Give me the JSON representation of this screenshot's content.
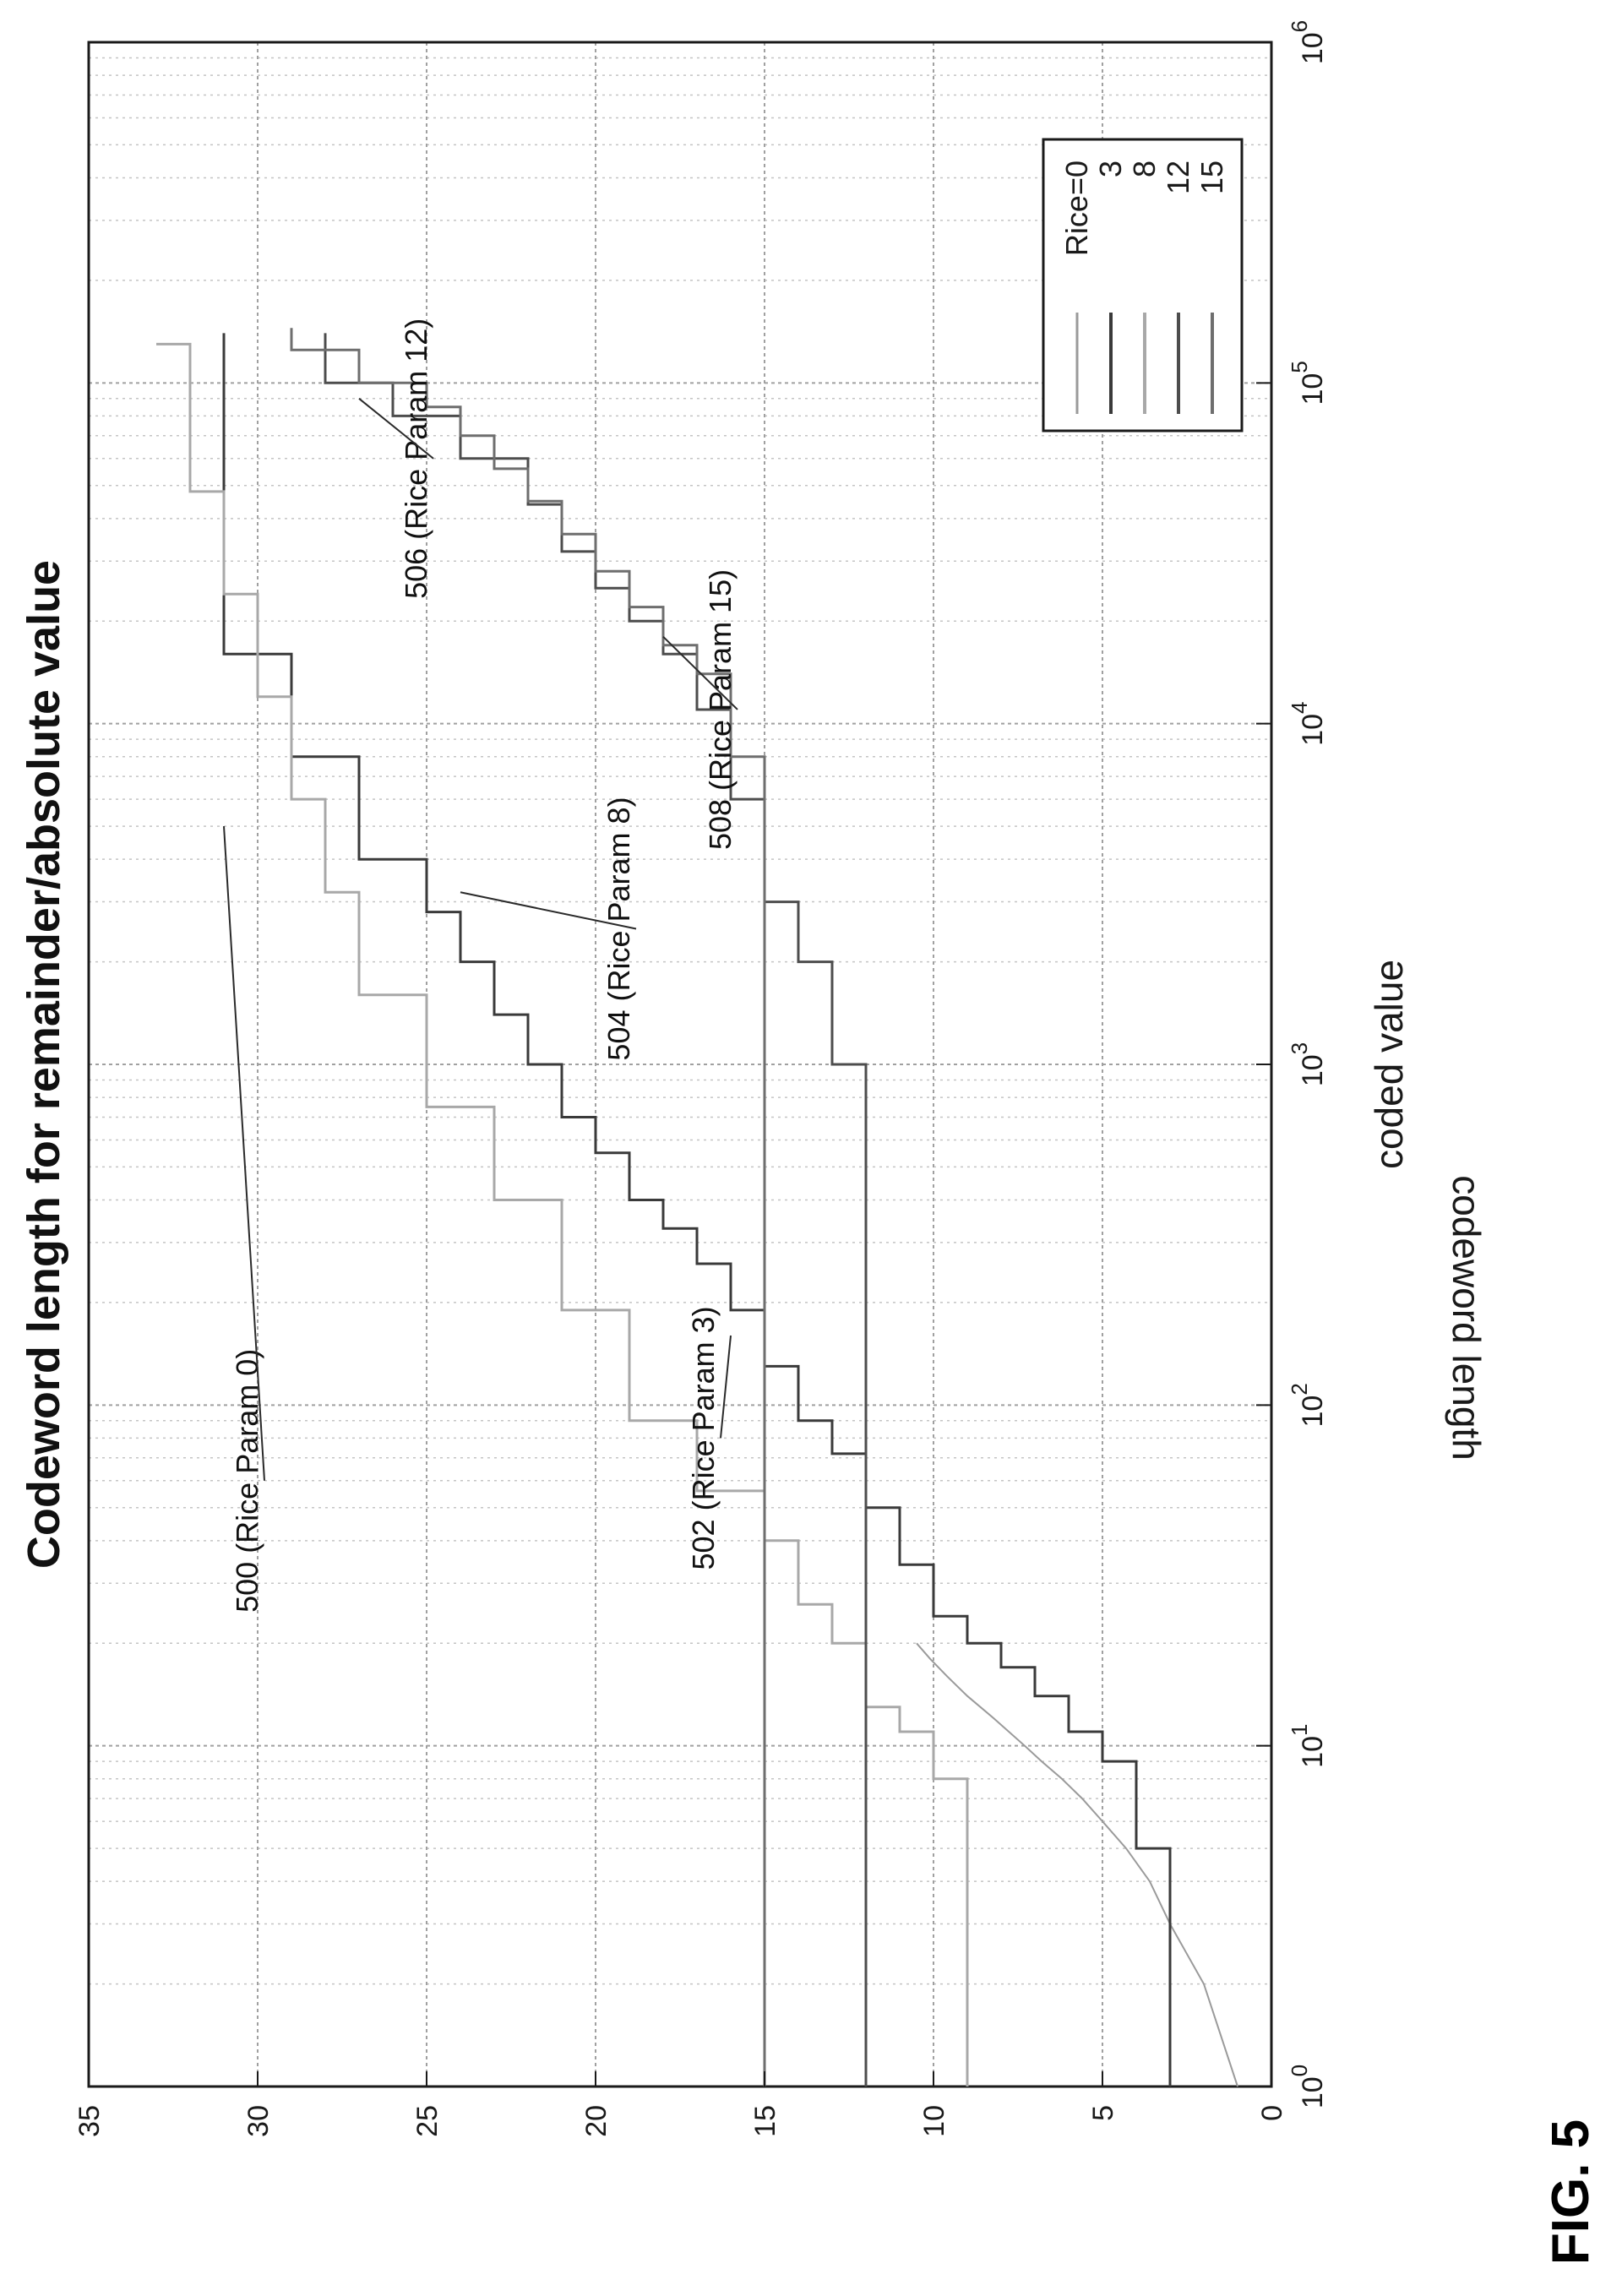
{
  "figure_caption": "FIG. 5",
  "chart_data": {
    "type": "line",
    "title": "Codeword length for remainder/absolute value",
    "xlabel": "coded value",
    "ylabel": "codeword length",
    "x_scale": "log",
    "xlim": [
      1,
      1000000
    ],
    "ylim": [
      0,
      35
    ],
    "x_ticks": [
      {
        "value": 1,
        "base": "10",
        "exp": "0"
      },
      {
        "value": 10,
        "base": "10",
        "exp": "1"
      },
      {
        "value": 100,
        "base": "10",
        "exp": "2"
      },
      {
        "value": 1000,
        "base": "10",
        "exp": "3"
      },
      {
        "value": 10000,
        "base": "10",
        "exp": "4"
      },
      {
        "value": 100000,
        "base": "10",
        "exp": "5"
      },
      {
        "value": 1000000,
        "base": "10",
        "exp": "6"
      }
    ],
    "y_ticks": [
      "0",
      "5",
      "10",
      "15",
      "20",
      "25",
      "30",
      "35"
    ],
    "grid": true,
    "legend_position": "bottom-right",
    "series": [
      {
        "name": "Rice=0",
        "color": "#9a9a9a",
        "width": 2,
        "points": [
          [
            1,
            1
          ],
          [
            2,
            2
          ],
          [
            3,
            3
          ],
          [
            4,
            3.6
          ],
          [
            5,
            4.3
          ],
          [
            6,
            5
          ],
          [
            7,
            5.6
          ],
          [
            8,
            6.2
          ],
          [
            9,
            6.8
          ],
          [
            10,
            7.3
          ],
          [
            12,
            8.2
          ],
          [
            14,
            9
          ],
          [
            16,
            9.6
          ],
          [
            18,
            10.1
          ],
          [
            20,
            10.5
          ]
        ]
      },
      {
        "name": "3",
        "color": "#3a3a3a",
        "width": 3,
        "points": [
          [
            1,
            3
          ],
          [
            5,
            3
          ],
          [
            5,
            4
          ],
          [
            9,
            4
          ],
          [
            9,
            5
          ],
          [
            11,
            5
          ],
          [
            11,
            6
          ],
          [
            14,
            6
          ],
          [
            14,
            7
          ],
          [
            17,
            7
          ],
          [
            17,
            8
          ],
          [
            20,
            8
          ],
          [
            20,
            9
          ],
          [
            24,
            9
          ],
          [
            24,
            10
          ],
          [
            34,
            10
          ],
          [
            34,
            11
          ],
          [
            50,
            11
          ],
          [
            50,
            12
          ],
          [
            72,
            12
          ],
          [
            72,
            13
          ],
          [
            90,
            13
          ],
          [
            90,
            14
          ],
          [
            130,
            14
          ],
          [
            130,
            15
          ],
          [
            190,
            15
          ],
          [
            190,
            16
          ],
          [
            260,
            16
          ],
          [
            260,
            17
          ],
          [
            330,
            17
          ],
          [
            330,
            18
          ],
          [
            400,
            18
          ],
          [
            400,
            19
          ],
          [
            550,
            19
          ],
          [
            550,
            20
          ],
          [
            700,
            20
          ],
          [
            700,
            21
          ],
          [
            1000,
            21
          ],
          [
            1000,
            22
          ],
          [
            1400,
            22
          ],
          [
            1400,
            23
          ],
          [
            2000,
            23
          ],
          [
            2000,
            24
          ],
          [
            2800,
            24
          ],
          [
            2800,
            25
          ],
          [
            4000,
            25
          ],
          [
            4000,
            27
          ],
          [
            8000,
            27
          ],
          [
            8000,
            29
          ],
          [
            16000,
            29
          ],
          [
            16000,
            31
          ],
          [
            140000,
            31
          ]
        ]
      },
      {
        "name": "8",
        "color": "#a8a8a8",
        "width": 3,
        "points": [
          [
            1,
            9
          ],
          [
            8,
            9
          ],
          [
            8,
            10
          ],
          [
            11,
            10
          ],
          [
            11,
            11
          ],
          [
            13,
            11
          ],
          [
            13,
            12
          ],
          [
            20,
            12
          ],
          [
            20,
            13
          ],
          [
            26,
            13
          ],
          [
            26,
            14
          ],
          [
            40,
            14
          ],
          [
            40,
            15
          ],
          [
            56,
            15
          ],
          [
            56,
            17
          ],
          [
            90,
            17
          ],
          [
            90,
            19
          ],
          [
            190,
            19
          ],
          [
            190,
            21
          ],
          [
            400,
            21
          ],
          [
            400,
            23
          ],
          [
            750,
            23
          ],
          [
            750,
            25
          ],
          [
            1600,
            25
          ],
          [
            1600,
            27
          ],
          [
            3200,
            27
          ],
          [
            3200,
            28
          ],
          [
            6000,
            28
          ],
          [
            6000,
            29
          ],
          [
            12000,
            29
          ],
          [
            12000,
            30
          ],
          [
            24000,
            30
          ],
          [
            24000,
            31
          ],
          [
            48000,
            31
          ],
          [
            48000,
            32
          ],
          [
            130000,
            32
          ],
          [
            130000,
            33
          ]
        ]
      },
      {
        "name": "12",
        "color": "#4d4d4d",
        "width": 3,
        "points": [
          [
            1,
            12
          ],
          [
            1000,
            12
          ],
          [
            1000,
            13
          ],
          [
            2000,
            13
          ],
          [
            2000,
            14
          ],
          [
            3000,
            14
          ],
          [
            3000,
            15
          ],
          [
            6000,
            15
          ],
          [
            6000,
            16
          ],
          [
            11000,
            16
          ],
          [
            11000,
            17
          ],
          [
            16000,
            17
          ],
          [
            16000,
            18
          ],
          [
            20000,
            18
          ],
          [
            20000,
            19
          ],
          [
            25000,
            19
          ],
          [
            25000,
            20
          ],
          [
            32000,
            20
          ],
          [
            32000,
            21
          ],
          [
            44000,
            21
          ],
          [
            44000,
            22
          ],
          [
            60000,
            22
          ],
          [
            60000,
            24
          ],
          [
            80000,
            24
          ],
          [
            80000,
            26
          ],
          [
            100000,
            26
          ],
          [
            100000,
            28
          ],
          [
            140000,
            28
          ]
        ]
      },
      {
        "name": "15",
        "color": "#6e6e6e",
        "width": 3,
        "points": [
          [
            1,
            15
          ],
          [
            8000,
            15
          ],
          [
            8000,
            16
          ],
          [
            14000,
            16
          ],
          [
            14000,
            17
          ],
          [
            17000,
            17
          ],
          [
            17000,
            18
          ],
          [
            22000,
            18
          ],
          [
            22000,
            19
          ],
          [
            28000,
            19
          ],
          [
            28000,
            20
          ],
          [
            36000,
            20
          ],
          [
            36000,
            21
          ],
          [
            45000,
            21
          ],
          [
            45000,
            22
          ],
          [
            56000,
            22
          ],
          [
            56000,
            23
          ],
          [
            70000,
            23
          ],
          [
            70000,
            24
          ],
          [
            85000,
            24
          ],
          [
            85000,
            25
          ],
          [
            100000,
            25
          ],
          [
            100000,
            27
          ],
          [
            125000,
            27
          ],
          [
            125000,
            29
          ],
          [
            145000,
            29
          ]
        ]
      }
    ],
    "annotations": [
      {
        "id": "anno-500",
        "text": "500 (Rice Param 0)",
        "tx": 60,
        "ty": 30,
        "ax": 5000,
        "ay": 31
      },
      {
        "id": "anno-502",
        "text": "502 (Rice Param 3)",
        "tx": 80,
        "ty": 16.5,
        "ax": 160,
        "ay": 16
      },
      {
        "id": "anno-504",
        "text": "504 (Rice Param 8)",
        "tx": 2500,
        "ty": 19,
        "ax": 3200,
        "ay": 24
      },
      {
        "id": "anno-506",
        "text": "506 (Rice Param 12)",
        "tx": 60000,
        "ty": 25,
        "ax": 90000,
        "ay": 27
      },
      {
        "id": "anno-508",
        "text": "508 (Rice Param 15)",
        "tx": 11000,
        "ty": 16,
        "ax": 18000,
        "ay": 18
      }
    ]
  }
}
